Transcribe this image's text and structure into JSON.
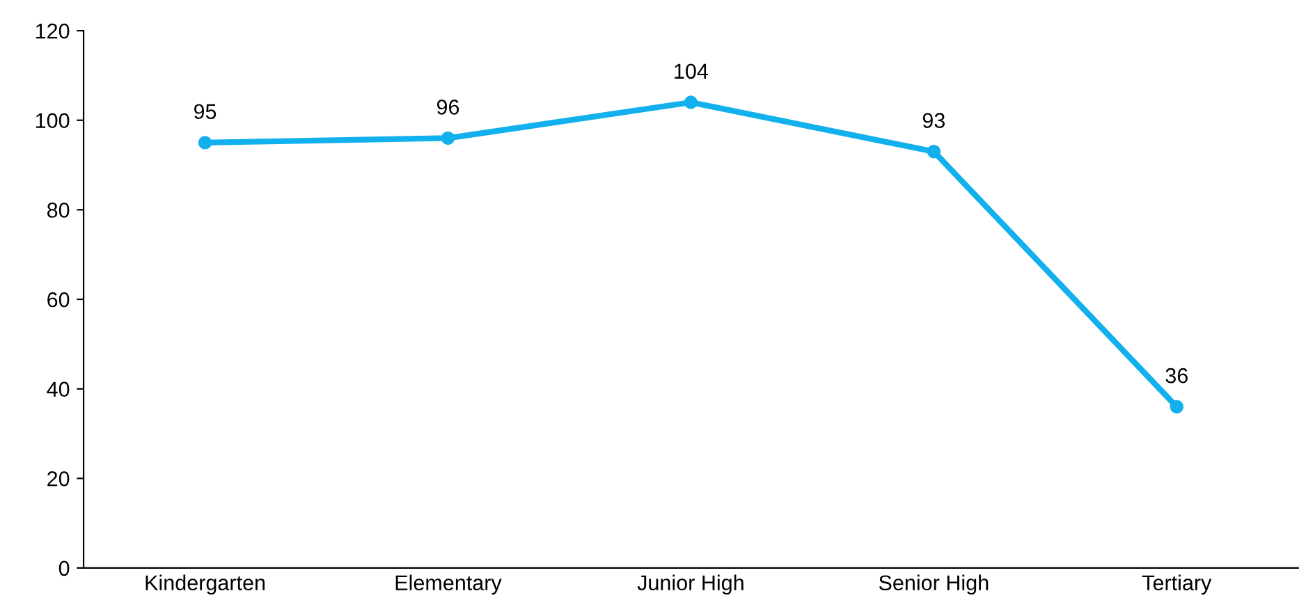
{
  "chart_data": {
    "type": "line",
    "categories": [
      "Kindergarten",
      "Elementary",
      "Junior High",
      "Senior High",
      "Tertiary"
    ],
    "series": [
      {
        "color": "#12b0ec",
        "values": [
          95,
          96,
          104,
          93,
          36
        ]
      }
    ],
    "ylim": [
      0,
      120
    ],
    "yticks": [
      0,
      20,
      40,
      60,
      80,
      100,
      120
    ],
    "marker": "circle",
    "line_style": "solid",
    "data_labels": true,
    "grid": false,
    "legend": false
  }
}
